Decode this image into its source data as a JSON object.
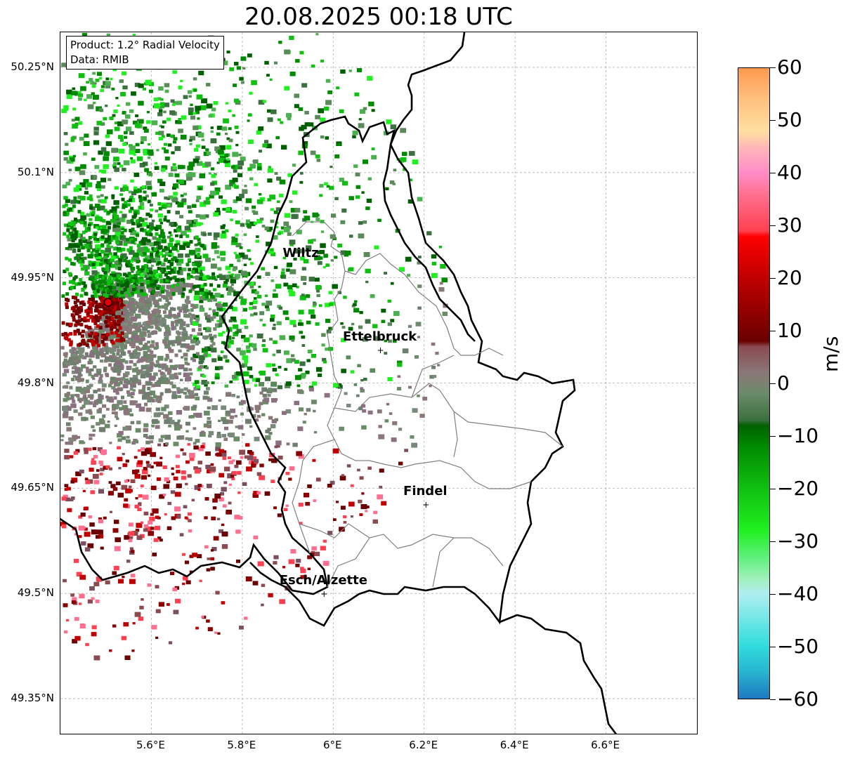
{
  "title": "20.08.2025 00:18 UTC",
  "info": {
    "product": "Product: 1.2° Radial Velocity",
    "data": "Data: RMIB"
  },
  "lat_ticks": [
    {
      "label": "50.25°N",
      "lat": 50.25
    },
    {
      "label": "50.1°N",
      "lat": 50.1
    },
    {
      "label": "49.95°N",
      "lat": 49.95
    },
    {
      "label": "49.8°N",
      "lat": 49.8
    },
    {
      "label": "49.65°N",
      "lat": 49.65
    },
    {
      "label": "49.5°N",
      "lat": 49.5
    },
    {
      "label": "49.35°N",
      "lat": 49.35
    }
  ],
  "lon_ticks": [
    {
      "label": "5.6°E",
      "lon": 5.6
    },
    {
      "label": "5.8°E",
      "lon": 5.8
    },
    {
      "label": "6°E",
      "lon": 6.0
    },
    {
      "label": "6.2°E",
      "lon": 6.2
    },
    {
      "label": "6.4°E",
      "lon": 6.4
    },
    {
      "label": "6.6°E",
      "lon": 6.6
    }
  ],
  "extent": {
    "lon_min": 5.4,
    "lon_max": 6.8,
    "lat_min": 49.3,
    "lat_max": 50.3
  },
  "radar": {
    "lon": 5.505,
    "lat": 49.915
  },
  "places": [
    {
      "name": "Wiltz",
      "lon": 5.93,
      "lat": 49.967
    },
    {
      "name": "Ettelbruck",
      "lon": 6.104,
      "lat": 49.848
    },
    {
      "name": "Findel",
      "lon": 6.204,
      "lat": 49.627
    },
    {
      "name": "Esch/Alzette",
      "lon": 5.98,
      "lat": 49.5
    }
  ],
  "colorbar": {
    "unit": "m/s",
    "min": -60,
    "max": 60,
    "ticks": [
      {
        "label": "60",
        "value": 60
      },
      {
        "label": "50",
        "value": 50
      },
      {
        "label": "40",
        "value": 40
      },
      {
        "label": "30",
        "value": 30
      },
      {
        "label": "20",
        "value": 20
      },
      {
        "label": "10",
        "value": 10
      },
      {
        "label": "0",
        "value": 0
      },
      {
        "label": "−10",
        "value": -10
      },
      {
        "label": "−20",
        "value": -20
      },
      {
        "label": "−30",
        "value": -30
      },
      {
        "label": "−40",
        "value": -40
      },
      {
        "label": "−50",
        "value": -50
      },
      {
        "label": "−60",
        "value": -60
      }
    ],
    "stops": [
      {
        "value": -60,
        "color": "#1f78c0"
      },
      {
        "value": -55,
        "color": "#28b4d0"
      },
      {
        "value": -50,
        "color": "#30dcdc"
      },
      {
        "value": -45,
        "color": "#70e6e6"
      },
      {
        "value": -40,
        "color": "#b0eef0"
      },
      {
        "value": -37,
        "color": "#9ef0b8"
      },
      {
        "value": -33,
        "color": "#5cf07a"
      },
      {
        "value": -28,
        "color": "#20f020"
      },
      {
        "value": -20,
        "color": "#10c010"
      },
      {
        "value": -12,
        "color": "#008a00"
      },
      {
        "value": -8,
        "color": "#006000"
      },
      {
        "value": -7,
        "color": "#3c7040"
      },
      {
        "value": -2,
        "color": "#6a8a68"
      },
      {
        "value": 2,
        "color": "#8a7878"
      },
      {
        "value": 7,
        "color": "#8a4a50"
      },
      {
        "value": 8,
        "color": "#6a0000"
      },
      {
        "value": 20,
        "color": "#c00000"
      },
      {
        "value": 28,
        "color": "#ff0000"
      },
      {
        "value": 29,
        "color": "#ff4050"
      },
      {
        "value": 36,
        "color": "#ff7090"
      },
      {
        "value": 40,
        "color": "#ff8cc8"
      },
      {
        "value": 45,
        "color": "#ffb8b8"
      },
      {
        "value": 48,
        "color": "#ffe0a0"
      },
      {
        "value": 54,
        "color": "#ffc080"
      },
      {
        "value": 60,
        "color": "#ff9a50"
      }
    ]
  }
}
